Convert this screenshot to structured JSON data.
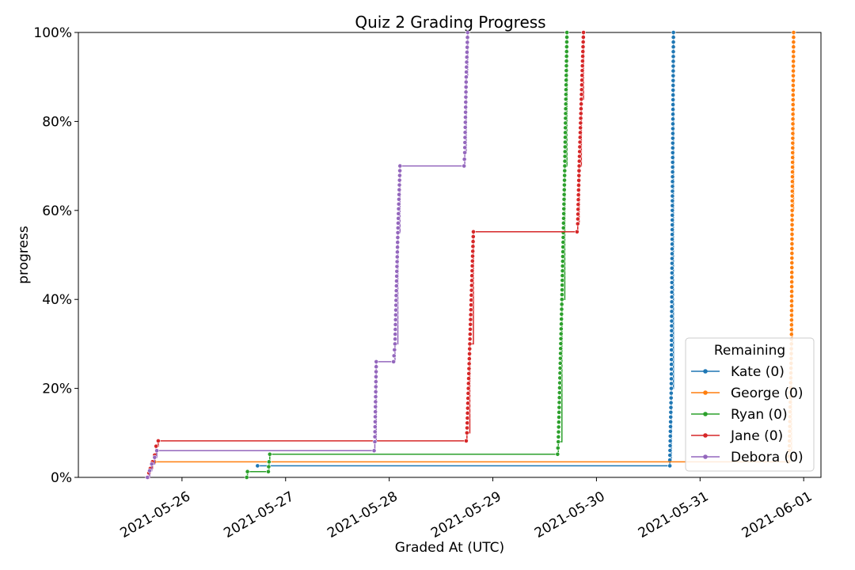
{
  "chart_data": {
    "type": "line",
    "title": "Quiz 2 Grading Progress",
    "xlabel": "Graded At (UTC)",
    "ylabel": "progress",
    "x_axis_type": "date",
    "xlim": [
      "2021-05-25T00:00",
      "2021-06-01T04:00"
    ],
    "ylim": [
      0,
      100
    ],
    "x_ticks": [
      "2021-05-26",
      "2021-05-27",
      "2021-05-28",
      "2021-05-29",
      "2021-05-30",
      "2021-05-31",
      "2021-06-01"
    ],
    "y_ticks": [
      0,
      20,
      40,
      60,
      80,
      100
    ],
    "y_tick_labels": [
      "0%",
      "20%",
      "40%",
      "60%",
      "80%",
      "100%"
    ],
    "legend": {
      "title": "Remaining",
      "placement": "lower-right"
    },
    "series": [
      {
        "name": "Kate (0)",
        "color": "#1f77b4",
        "x": [
          "2021-05-26T17:30",
          "2021-05-30T17:00",
          "2021-05-30T17:00",
          "2021-05-30T17:20",
          "2021-05-30T17:50"
        ],
        "y": [
          2.6,
          2.6,
          3.9,
          20,
          100
        ]
      },
      {
        "name": "George (0)",
        "color": "#ff7f0e",
        "x": [
          "2021-05-25T17:40",
          "2021-05-31T20:30",
          "2021-05-31T20:40",
          "2021-05-31T21:10",
          "2021-05-31T21:20",
          "2021-05-31T21:40"
        ],
        "y": [
          3.5,
          3.5,
          6,
          30,
          60,
          100
        ]
      },
      {
        "name": "Ryan (0)",
        "color": "#2ca02c",
        "x": [
          "2021-05-26T15:00",
          "2021-05-26T15:10",
          "2021-05-26T20:00",
          "2021-05-26T20:10",
          "2021-05-26T20:20",
          "2021-05-29T15:00",
          "2021-05-29T15:10",
          "2021-05-29T16:00",
          "2021-05-29T16:40",
          "2021-05-29T17:10"
        ],
        "y": [
          0,
          1.3,
          1.3,
          3.5,
          5.2,
          5.2,
          8,
          40,
          70,
          100
        ]
      },
      {
        "name": "Jane (0)",
        "color": "#d62728",
        "x": [
          "2021-05-25T16:10",
          "2021-05-25T16:20",
          "2021-05-25T16:40",
          "2021-05-25T17:10",
          "2021-05-25T17:40",
          "2021-05-25T18:00",
          "2021-05-25T18:30",
          "2021-05-28T17:50",
          "2021-05-28T18:00",
          "2021-05-28T18:40",
          "2021-05-28T19:30",
          "2021-05-29T19:30",
          "2021-05-29T19:40",
          "2021-05-29T20:00",
          "2021-05-29T20:30",
          "2021-05-29T21:00"
        ],
        "y": [
          0,
          1,
          2,
          3.5,
          5,
          7,
          8.2,
          8.2,
          10,
          30,
          55.2,
          55.2,
          57,
          70,
          85,
          100
        ]
      },
      {
        "name": "Debora (0)",
        "color": "#9467bd",
        "x": [
          "2021-05-25T16:00",
          "2021-05-25T16:30",
          "2021-05-25T17:00",
          "2021-05-25T17:40",
          "2021-05-25T18:10",
          "2021-05-27T20:30",
          "2021-05-27T20:40",
          "2021-05-27T21:00",
          "2021-05-28T01:00",
          "2021-05-28T01:20",
          "2021-05-28T02:00",
          "2021-05-28T02:30",
          "2021-05-28T17:20",
          "2021-05-28T17:30",
          "2021-05-28T17:50",
          "2021-05-28T18:10"
        ],
        "y": [
          0,
          1.5,
          3,
          4.5,
          6,
          6,
          8,
          26,
          26,
          30,
          55,
          70,
          70,
          73,
          90,
          100
        ]
      }
    ]
  }
}
